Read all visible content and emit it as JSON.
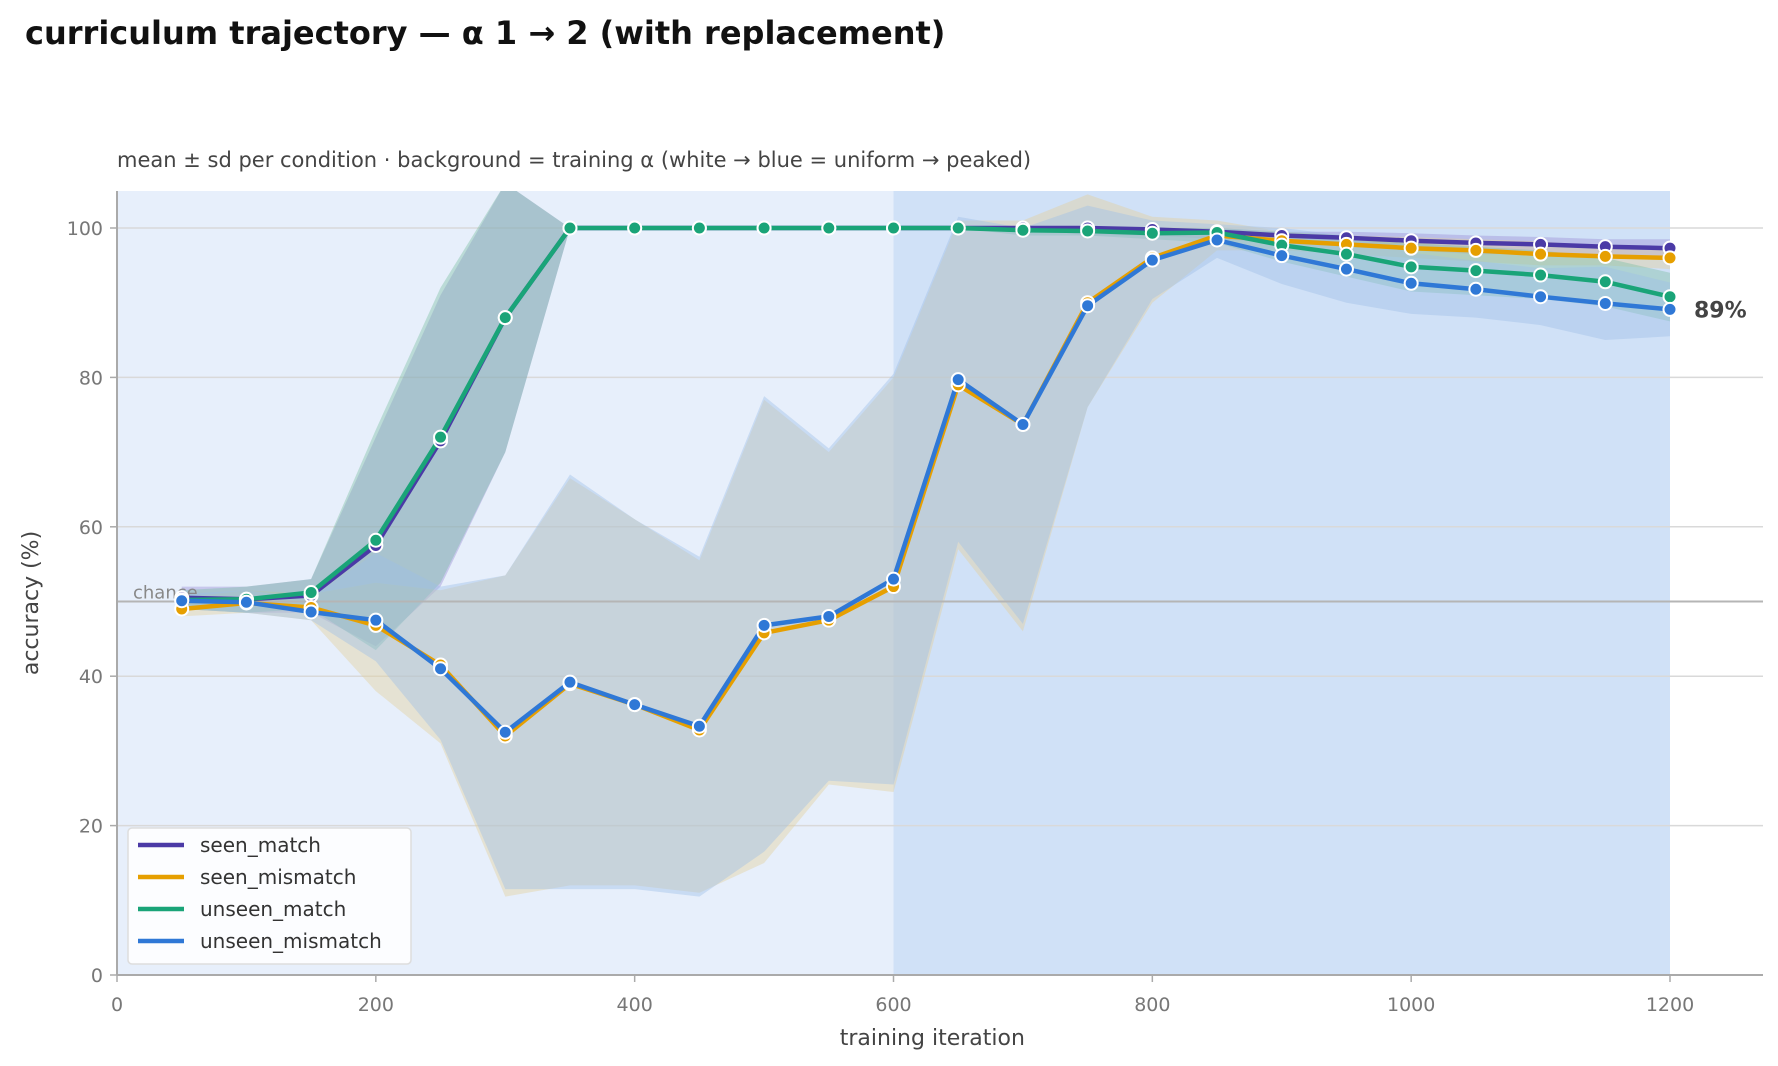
{
  "title": "curriculum trajectory — α 1 → 2 (with replacement)",
  "chart_data": {
    "type": "line",
    "subtitle": "mean ± sd per condition · background = training α (white → blue = uniform → peaked)",
    "xlabel": "training iteration",
    "ylabel": "accuracy (%)",
    "xlim": [
      0,
      1270
    ],
    "ylim": [
      0,
      105
    ],
    "xticks": [
      0,
      200,
      400,
      600,
      800,
      1000,
      1200
    ],
    "yticks": [
      0,
      20,
      40,
      60,
      80,
      100
    ],
    "grid": "horizontal",
    "legend_position": "lower-left",
    "chance_level": 50,
    "chance_label": "chance",
    "end_label": "89%",
    "background_bands": [
      {
        "x_start": 0,
        "x_end": 600,
        "color": "#e7effb"
      },
      {
        "x_start": 600,
        "x_end": 1200,
        "color": "#d0e1f7"
      }
    ],
    "x": [
      50,
      100,
      150,
      200,
      250,
      300,
      350,
      400,
      450,
      500,
      550,
      600,
      650,
      700,
      750,
      800,
      850,
      900,
      950,
      1000,
      1050,
      1100,
      1150,
      1200
    ],
    "series": [
      {
        "name": "seen_match",
        "color": "#4b3aa6",
        "values": [
          50.5,
          50.3,
          50.8,
          57.5,
          71.5,
          88,
          100,
          100,
          100,
          100,
          100,
          100,
          100,
          100,
          100,
          99.8,
          99.5,
          99,
          98.7,
          98.3,
          98,
          97.8,
          97.5,
          97.3
        ],
        "sd_lower": [
          49,
          48.5,
          48.5,
          44,
          52,
          70,
          100,
          100,
          100,
          100,
          100,
          100,
          100,
          100,
          99,
          99,
          98.5,
          98,
          97.5,
          97,
          96.5,
          96.5,
          96,
          96
        ],
        "sd_upper": [
          52,
          52,
          53,
          72,
          91,
          106,
          100,
          100,
          100,
          100,
          100,
          100,
          100,
          100,
          100,
          100,
          100,
          99.5,
          99.5,
          99.3,
          99,
          98.8,
          98.5,
          98.5
        ]
      },
      {
        "name": "seen_mismatch",
        "color": "#e69f00",
        "values": [
          49,
          49.8,
          49.2,
          46.8,
          41.5,
          32,
          39,
          36.2,
          32.8,
          45.8,
          47.5,
          52,
          79,
          73.7,
          90,
          96,
          99,
          98.3,
          97.8,
          97.3,
          97,
          96.5,
          96.2,
          96
        ],
        "sd_lower": [
          48,
          48.5,
          47.5,
          38,
          31,
          10.5,
          12,
          12,
          11,
          15,
          25.5,
          24.5,
          57,
          46,
          76,
          90,
          97,
          97,
          96.5,
          96,
          95.5,
          95,
          95,
          94.5
        ],
        "sd_upper": [
          50.5,
          51.5,
          51,
          52.5,
          51.5,
          53.5,
          66.5,
          61,
          55.5,
          77,
          70,
          80,
          101,
          101,
          104.5,
          101.5,
          101,
          99.5,
          99,
          98.8,
          98.5,
          98.2,
          97.5,
          97.5
        ]
      },
      {
        "name": "unseen_match",
        "color": "#1aa478",
        "values": [
          50.2,
          50.3,
          51.2,
          58.2,
          72,
          88,
          100,
          100,
          100,
          100,
          100,
          100,
          100,
          99.7,
          99.6,
          99.3,
          99.4,
          97.7,
          96.5,
          94.8,
          94.3,
          93.7,
          92.8,
          90.8
        ],
        "sd_lower": [
          49,
          48.5,
          49,
          43.5,
          52.5,
          70,
          100,
          100,
          100,
          100,
          100,
          100,
          100,
          99,
          99,
          98.5,
          98,
          95.5,
          93.5,
          91.5,
          91,
          90.5,
          89.5,
          87.5
        ],
        "sd_upper": [
          51.5,
          52,
          53,
          73,
          92,
          106,
          100,
          100,
          100,
          100,
          100,
          100,
          100,
          100,
          100,
          100,
          100,
          99.5,
          99,
          98,
          97.5,
          97,
          96,
          94
        ]
      },
      {
        "name": "unseen_mismatch",
        "color": "#2f78d6",
        "values": [
          50.1,
          49.9,
          48.6,
          47.5,
          41,
          32.5,
          39.2,
          36.2,
          33.3,
          46.8,
          48,
          53,
          79.7,
          73.7,
          89.6,
          95.7,
          98.4,
          96.3,
          94.5,
          92.6,
          91.8,
          90.8,
          89.9,
          89.1
        ],
        "sd_lower": [
          49,
          48.5,
          47.5,
          42,
          31.5,
          11.5,
          11.5,
          11.5,
          10.5,
          16.5,
          26,
          25.5,
          58,
          47,
          76,
          90.5,
          96,
          92.5,
          90,
          88.5,
          88,
          87,
          85,
          85.5
        ],
        "sd_upper": [
          51,
          51.5,
          50.5,
          56.5,
          52,
          53.5,
          67,
          61,
          56,
          77.5,
          70.5,
          80.5,
          101.5,
          100,
          103,
          101,
          100.5,
          100,
          99,
          96.7,
          95.6,
          94.6,
          94.8,
          92.7
        ]
      }
    ]
  }
}
